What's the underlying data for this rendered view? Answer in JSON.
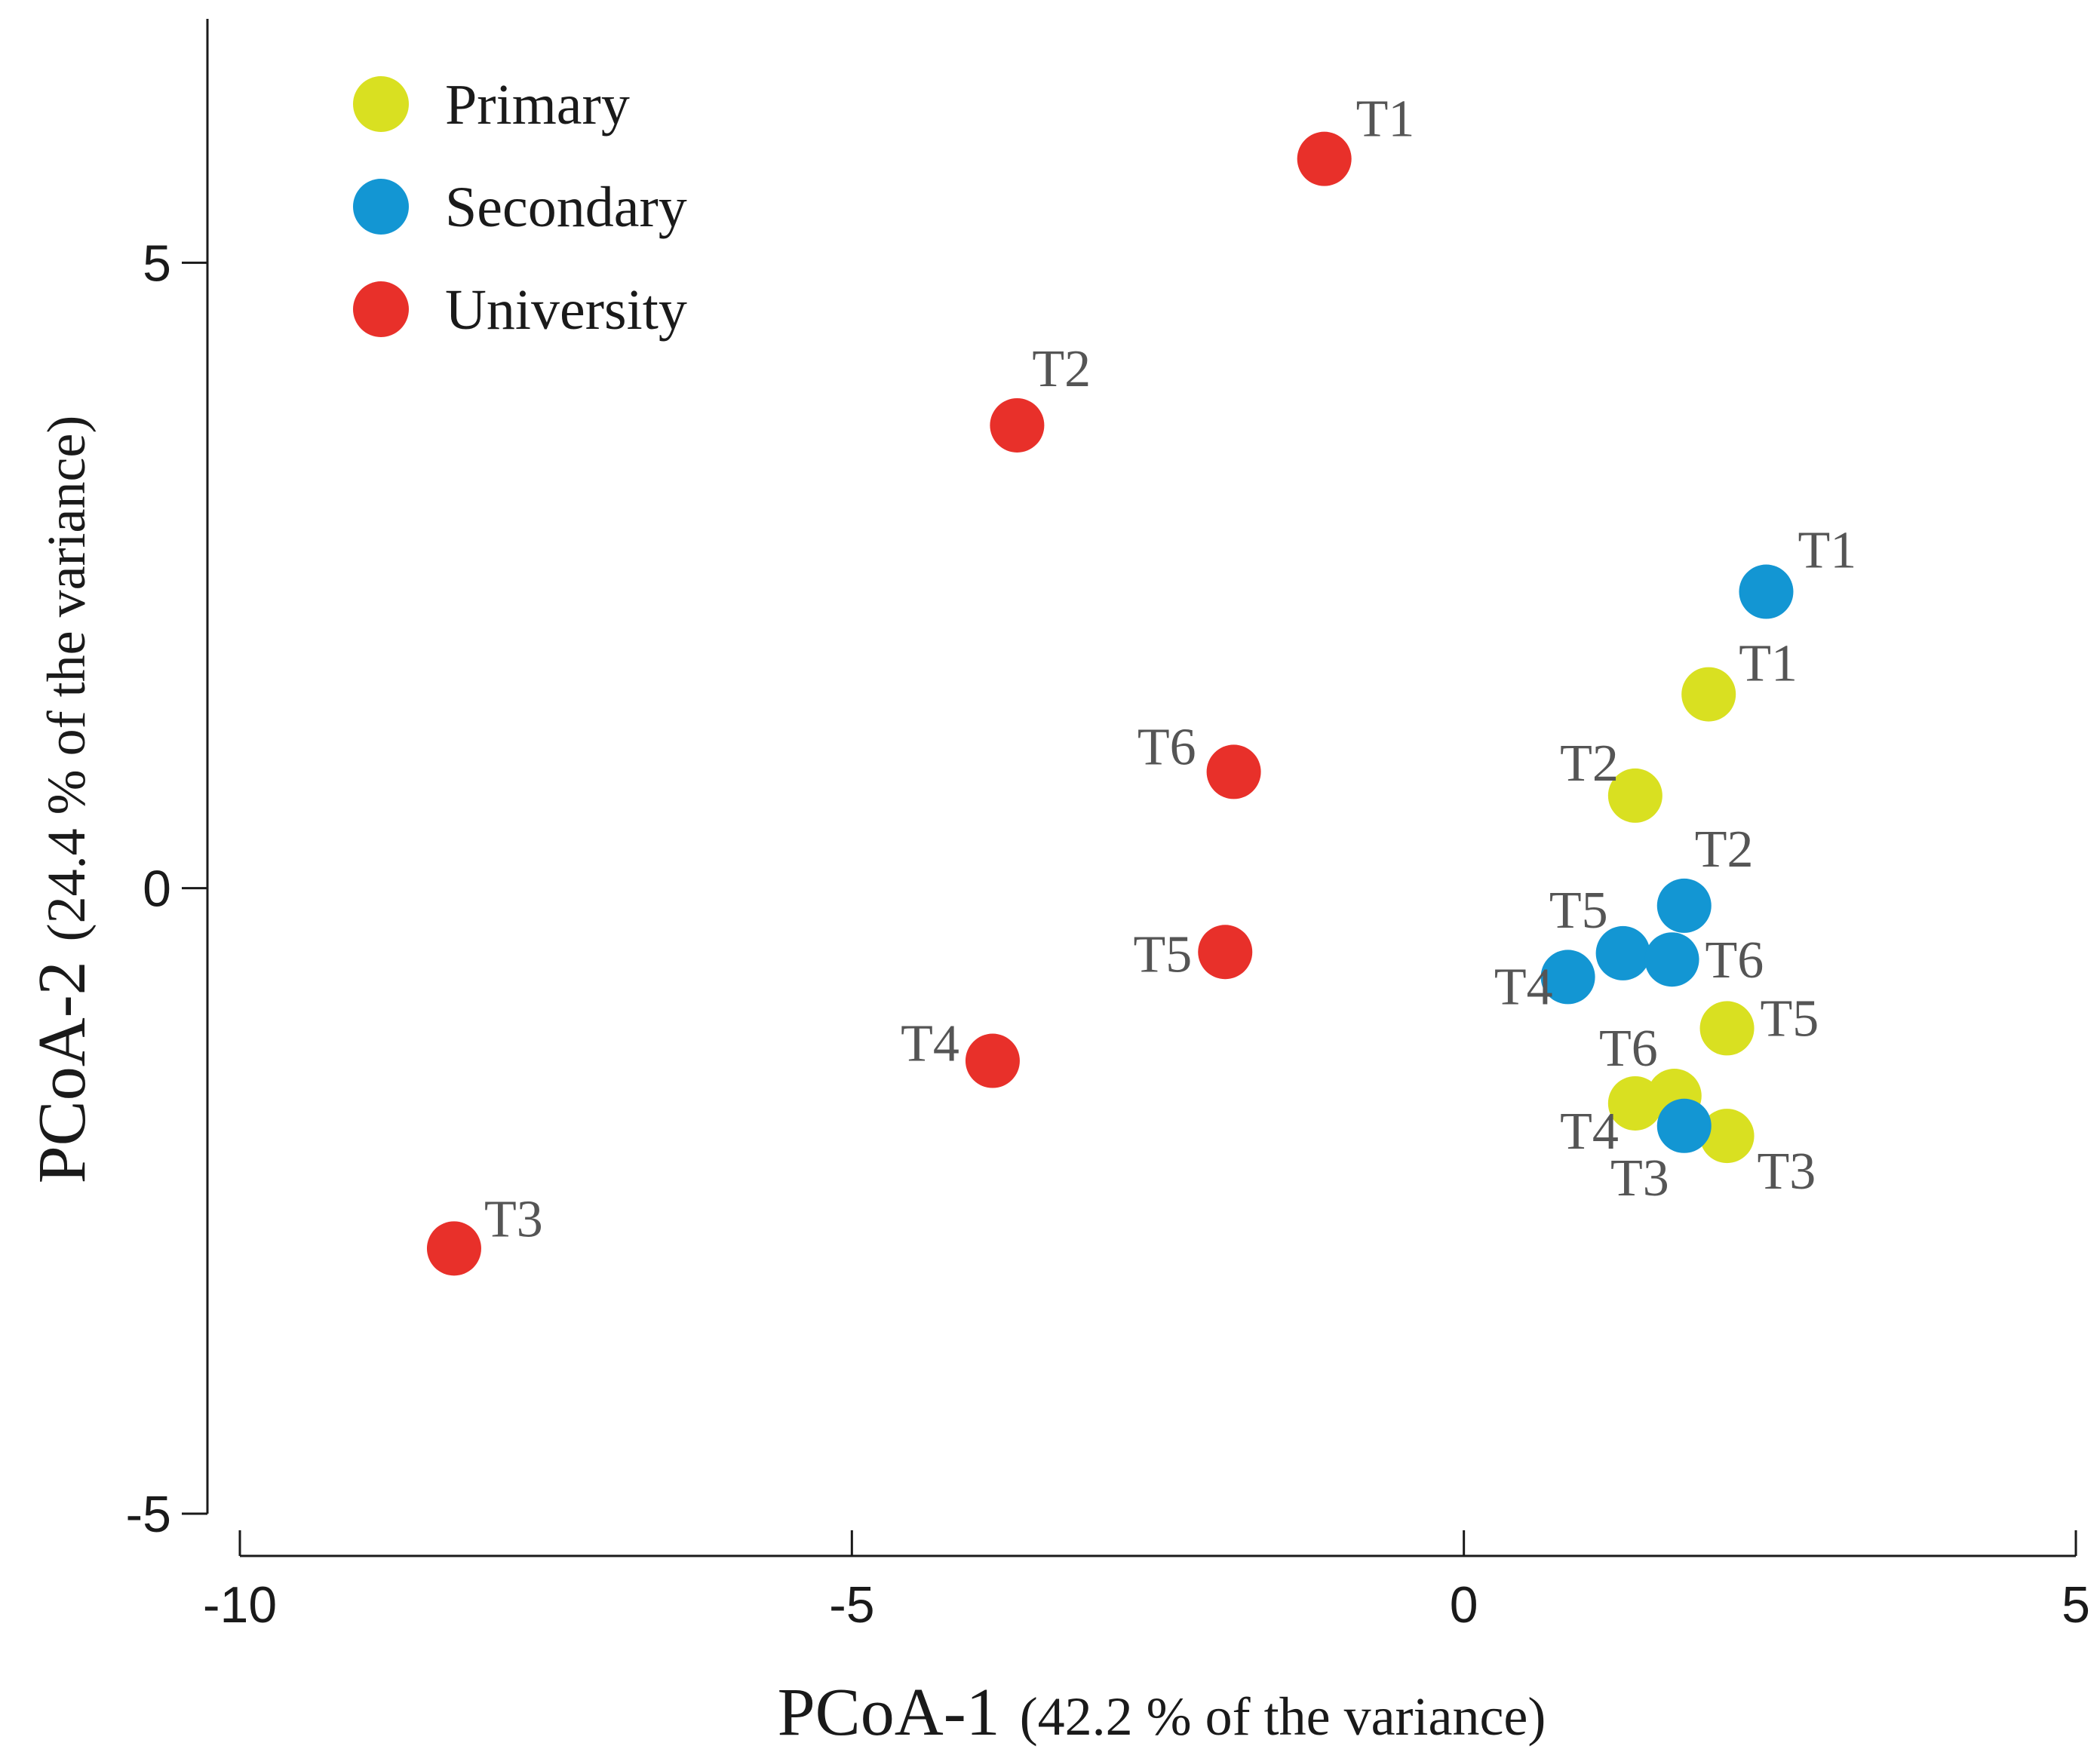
{
  "chart_data": {
    "type": "scatter",
    "title": "",
    "xlabel_main": "PCoA-1",
    "xlabel_sub": "(42.2 % of the variance)",
    "ylabel_main": "PCoA-2",
    "ylabel_sub": "(24.4 % of the variance)",
    "xlim": [
      -10,
      5
    ],
    "ylim": [
      -5,
      7.1
    ],
    "xticks": [
      -10,
      -5,
      0,
      5
    ],
    "yticks": [
      -5,
      0,
      5
    ],
    "xtick_labels": [
      "-10",
      "-5",
      "0",
      "5"
    ],
    "ytick_labels": [
      "-5",
      "0",
      "5"
    ],
    "grid": false,
    "legend_position": "top-left",
    "series": [
      {
        "name": "Primary",
        "color": "#d9e021",
        "points": [
          {
            "label": "T1",
            "x": 2.0,
            "y": 1.55
          },
          {
            "label": "T2",
            "x": 1.4,
            "y": 0.74
          },
          {
            "label": "T3",
            "x": 2.15,
            "y": -1.98
          },
          {
            "label": "T4",
            "x": 1.4,
            "y": -1.72
          },
          {
            "label": "T5",
            "x": 2.15,
            "y": -1.12
          },
          {
            "label": "T6",
            "x": 1.72,
            "y": -1.66
          }
        ]
      },
      {
        "name": "Secondary",
        "color": "#1396d3",
        "points": [
          {
            "label": "T1",
            "x": 2.47,
            "y": 2.37
          },
          {
            "label": "T2",
            "x": 1.8,
            "y": -0.14
          },
          {
            "label": "T3",
            "x": 1.8,
            "y": -1.9
          },
          {
            "label": "T4",
            "x": 0.85,
            "y": -0.71
          },
          {
            "label": "T5",
            "x": 1.3,
            "y": -0.52
          },
          {
            "label": "T6",
            "x": 1.7,
            "y": -0.57
          }
        ]
      },
      {
        "name": "University",
        "color": "#e8302a",
        "points": [
          {
            "label": "T1",
            "x": -1.14,
            "y": 5.83
          },
          {
            "label": "T2",
            "x": -3.65,
            "y": 3.7
          },
          {
            "label": "T3",
            "x": -8.25,
            "y": -2.88
          },
          {
            "label": "T4",
            "x": -3.85,
            "y": -1.38
          },
          {
            "label": "T5",
            "x": -1.95,
            "y": -0.51
          },
          {
            "label": "T6",
            "x": -1.88,
            "y": 0.93
          }
        ]
      }
    ]
  }
}
